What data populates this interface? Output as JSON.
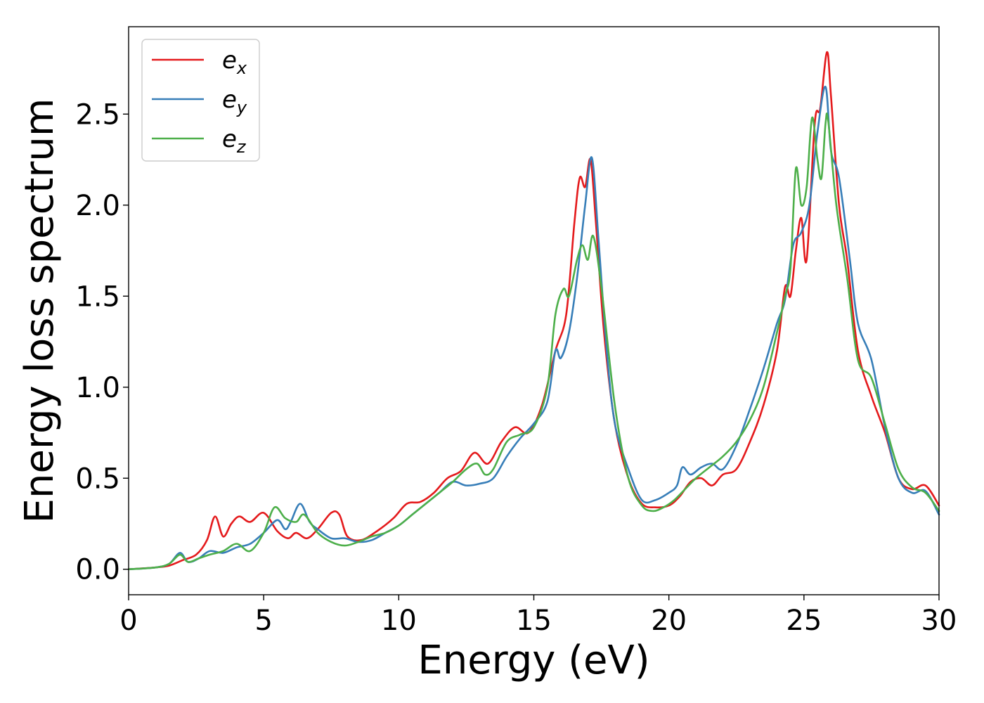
{
  "chart_data": {
    "type": "line",
    "title": "",
    "xlabel": "Energy (eV)",
    "ylabel": "Energy loss spectrum",
    "xlim": [
      0,
      30
    ],
    "ylim": [
      -0.14,
      2.98
    ],
    "xticks": [
      0,
      5,
      10,
      15,
      20,
      25,
      30
    ],
    "yticks": [
      0.0,
      0.5,
      1.0,
      1.5,
      2.0,
      2.5
    ],
    "xtick_labels": [
      "0",
      "5",
      "10",
      "15",
      "20",
      "25",
      "30"
    ],
    "ytick_labels": [
      "0.0",
      "0.5",
      "1.0",
      "1.5",
      "2.0",
      "2.5"
    ],
    "grid": false,
    "legend": {
      "position": "top-left"
    },
    "series": [
      {
        "name": "e_x",
        "legend_base": "e",
        "legend_sub": "x",
        "color": "#e41a1c",
        "x": [
          0,
          1.0,
          1.5,
          2.0,
          2.5,
          2.9,
          3.2,
          3.5,
          3.8,
          4.1,
          4.5,
          5.0,
          5.5,
          5.9,
          6.2,
          6.6,
          7.0,
          7.5,
          7.8,
          8.1,
          8.6,
          9.2,
          9.8,
          10.3,
          10.8,
          11.3,
          11.8,
          12.3,
          12.8,
          13.3,
          13.8,
          14.3,
          14.8,
          15.3,
          15.8,
          16.2,
          16.5,
          16.7,
          16.9,
          17.1,
          17.3,
          17.6,
          18.0,
          18.5,
          19.0,
          19.5,
          20.0,
          20.4,
          20.8,
          21.2,
          21.6,
          22.0,
          22.5,
          23.0,
          23.5,
          24.0,
          24.3,
          24.5,
          24.7,
          24.9,
          25.1,
          25.4,
          25.6,
          25.85,
          26.0,
          26.3,
          26.6,
          27.0,
          27.5,
          28.0,
          28.5,
          29.0,
          29.5,
          30.0
        ],
        "y": [
          0.0,
          0.01,
          0.02,
          0.05,
          0.08,
          0.16,
          0.29,
          0.18,
          0.25,
          0.29,
          0.26,
          0.31,
          0.21,
          0.17,
          0.2,
          0.17,
          0.22,
          0.31,
          0.3,
          0.18,
          0.16,
          0.21,
          0.28,
          0.36,
          0.37,
          0.42,
          0.5,
          0.54,
          0.64,
          0.58,
          0.7,
          0.78,
          0.75,
          0.9,
          1.2,
          1.4,
          1.9,
          2.15,
          2.1,
          2.25,
          1.9,
          1.3,
          0.8,
          0.5,
          0.36,
          0.34,
          0.35,
          0.4,
          0.48,
          0.5,
          0.46,
          0.52,
          0.55,
          0.7,
          0.9,
          1.2,
          1.55,
          1.5,
          1.75,
          1.93,
          1.7,
          2.45,
          2.53,
          2.84,
          2.6,
          2.0,
          1.7,
          1.2,
          0.95,
          0.75,
          0.5,
          0.44,
          0.46,
          0.35
        ]
      },
      {
        "name": "e_y",
        "legend_base": "e",
        "legend_sub": "y",
        "color": "#377eb8",
        "x": [
          0,
          1.0,
          1.5,
          1.9,
          2.2,
          2.6,
          3.0,
          3.5,
          4.0,
          4.5,
          5.0,
          5.5,
          5.8,
          6.0,
          6.35,
          6.7,
          7.0,
          7.5,
          8.0,
          8.5,
          9.0,
          9.5,
          10.0,
          10.5,
          11.0,
          11.5,
          12.0,
          12.5,
          13.0,
          13.5,
          14.0,
          14.5,
          15.0,
          15.5,
          15.8,
          16.0,
          16.3,
          16.6,
          16.9,
          17.15,
          17.4,
          17.7,
          18.0,
          18.5,
          19.0,
          19.5,
          20.0,
          20.3,
          20.5,
          20.8,
          21.2,
          21.6,
          22.0,
          22.5,
          23.0,
          23.5,
          24.0,
          24.3,
          24.6,
          24.9,
          25.2,
          25.5,
          25.8,
          26.0,
          26.3,
          26.7,
          27.0,
          27.5,
          28.0,
          28.5,
          29.0,
          29.5,
          30.0
        ],
        "y": [
          0.0,
          0.01,
          0.03,
          0.09,
          0.04,
          0.06,
          0.1,
          0.09,
          0.12,
          0.14,
          0.2,
          0.27,
          0.22,
          0.26,
          0.36,
          0.26,
          0.22,
          0.17,
          0.17,
          0.15,
          0.16,
          0.2,
          0.24,
          0.3,
          0.36,
          0.42,
          0.48,
          0.46,
          0.47,
          0.5,
          0.62,
          0.72,
          0.8,
          0.92,
          1.2,
          1.16,
          1.3,
          1.6,
          2.0,
          2.26,
          1.8,
          1.2,
          0.8,
          0.55,
          0.38,
          0.38,
          0.42,
          0.46,
          0.56,
          0.52,
          0.56,
          0.58,
          0.55,
          0.68,
          0.88,
          1.1,
          1.35,
          1.48,
          1.78,
          1.85,
          2.0,
          2.4,
          2.65,
          2.3,
          2.15,
          1.7,
          1.35,
          1.15,
          0.78,
          0.5,
          0.42,
          0.43,
          0.3
        ]
      },
      {
        "name": "e_z",
        "legend_base": "e",
        "legend_sub": "z",
        "color": "#4daf4a",
        "x": [
          0,
          1.0,
          1.5,
          1.9,
          2.2,
          2.6,
          3.0,
          3.5,
          4.0,
          4.5,
          5.0,
          5.4,
          5.8,
          6.2,
          6.5,
          7.0,
          7.5,
          8.0,
          8.5,
          9.0,
          9.5,
          10.0,
          10.5,
          11.0,
          11.5,
          12.0,
          12.5,
          12.9,
          13.2,
          13.5,
          14.0,
          14.5,
          15.0,
          15.5,
          15.8,
          16.1,
          16.3,
          16.6,
          16.8,
          17.0,
          17.2,
          17.5,
          18.0,
          18.5,
          19.0,
          19.4,
          19.8,
          20.2,
          20.6,
          21.0,
          21.5,
          22.0,
          22.5,
          23.0,
          23.5,
          24.0,
          24.3,
          24.5,
          24.7,
          24.9,
          25.1,
          25.3,
          25.5,
          25.65,
          25.8,
          25.9,
          26.2,
          26.6,
          27.0,
          27.5,
          28.0,
          28.5,
          29.0,
          29.5,
          30.0
        ],
        "y": [
          0.0,
          0.01,
          0.03,
          0.08,
          0.04,
          0.06,
          0.08,
          0.1,
          0.14,
          0.1,
          0.2,
          0.34,
          0.28,
          0.26,
          0.3,
          0.2,
          0.15,
          0.13,
          0.15,
          0.18,
          0.2,
          0.24,
          0.3,
          0.36,
          0.42,
          0.48,
          0.55,
          0.58,
          0.52,
          0.55,
          0.7,
          0.74,
          0.78,
          1.0,
          1.4,
          1.54,
          1.5,
          1.7,
          1.78,
          1.7,
          1.83,
          1.55,
          0.9,
          0.5,
          0.35,
          0.32,
          0.34,
          0.38,
          0.44,
          0.5,
          0.56,
          0.62,
          0.7,
          0.82,
          1.0,
          1.3,
          1.5,
          1.65,
          2.2,
          2.0,
          2.1,
          2.48,
          2.25,
          2.15,
          2.45,
          2.46,
          2.0,
          1.6,
          1.15,
          1.05,
          0.8,
          0.55,
          0.45,
          0.42,
          0.32
        ]
      }
    ]
  }
}
